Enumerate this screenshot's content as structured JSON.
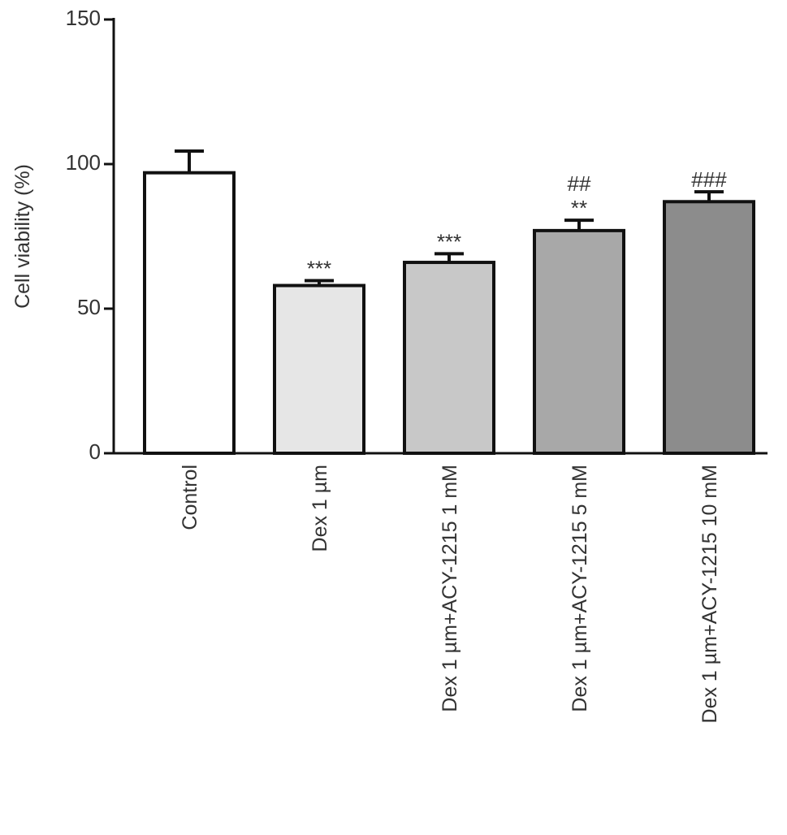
{
  "chart_data": {
    "type": "bar",
    "y_label": "Cell viability (%)",
    "categories": [
      "Control",
      "Dex 1 µm",
      "Dex 1 µm+ACY-1215 1 mM",
      "Dex 1 µm+ACY-1215 5 mM",
      "Dex 1 µm+ACY-1215 10 mM"
    ],
    "values": [
      97,
      58,
      66,
      77,
      87
    ],
    "errors": [
      7.5,
      1.7,
      3,
      3.6,
      3.4
    ],
    "colors": [
      "#ffffff",
      "#e6e6e6",
      "#c8c8c8",
      "#a8a8a8",
      "#8c8c8c"
    ],
    "annotations": [
      [],
      [
        "***"
      ],
      [
        "***"
      ],
      [
        "**",
        "##"
      ],
      [
        "###"
      ]
    ],
    "ylim": [
      0,
      150
    ],
    "yticks": [
      0,
      50,
      100,
      150
    ],
    "grid": false
  }
}
